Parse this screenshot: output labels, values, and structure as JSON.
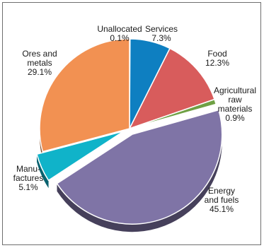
{
  "chart_data": {
    "type": "pie",
    "slices": [
      {
        "label_lines": [
          "Unallocated"
        ],
        "pct_text": "0.1%",
        "value": 0.1,
        "color": "#b8b8b8"
      },
      {
        "label_lines": [
          "Services"
        ],
        "pct_text": "7.3%",
        "value": 7.3,
        "color": "#0e7fc1"
      },
      {
        "label_lines": [
          "Food"
        ],
        "pct_text": "12.3%",
        "value": 12.3,
        "color": "#d85c5c"
      },
      {
        "label_lines": [
          "Agricultural",
          "raw",
          "materials"
        ],
        "pct_text": "0.9%",
        "value": 0.9,
        "color": "#6fa044"
      },
      {
        "label_lines": [
          "Energy",
          "and fuels"
        ],
        "pct_text": "45.1%",
        "value": 45.1,
        "color": "#7f74a6"
      },
      {
        "label_lines": [
          "Manu-",
          "factures"
        ],
        "pct_text": "5.1%",
        "value": 5.1,
        "color": "#10b3c9"
      },
      {
        "label_lines": [
          "Ores and",
          "metals"
        ],
        "pct_text": "29.1%",
        "value": 29.1,
        "color": "#f29152"
      }
    ]
  }
}
